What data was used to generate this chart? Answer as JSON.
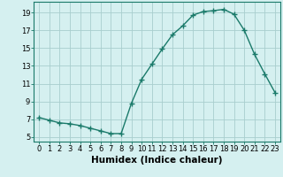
{
  "x": [
    0,
    1,
    2,
    3,
    4,
    5,
    6,
    7,
    8,
    9,
    10,
    11,
    12,
    13,
    14,
    15,
    16,
    17,
    18,
    19,
    20,
    21,
    22,
    23
  ],
  "y": [
    7.2,
    6.9,
    6.6,
    6.5,
    6.3,
    6.0,
    5.7,
    5.4,
    5.4,
    8.8,
    11.5,
    13.2,
    14.9,
    16.5,
    17.5,
    18.7,
    19.1,
    19.2,
    19.35,
    18.8,
    17.0,
    14.3,
    12.1,
    10.0
  ],
  "line_color": "#1a7a6a",
  "marker": "+",
  "marker_size": 4,
  "marker_lw": 1.0,
  "background_color": "#d5f0f0",
  "grid_color": "#a8cece",
  "xlabel": "Humidex (Indice chaleur)",
  "xlim": [
    -0.5,
    23.5
  ],
  "ylim": [
    4.5,
    20.2
  ],
  "xticks": [
    0,
    1,
    2,
    3,
    4,
    5,
    6,
    7,
    8,
    9,
    10,
    11,
    12,
    13,
    14,
    15,
    16,
    17,
    18,
    19,
    20,
    21,
    22,
    23
  ],
  "yticks": [
    5,
    7,
    9,
    11,
    13,
    15,
    17,
    19
  ],
  "fontsize_tick": 6,
  "fontsize_xlabel": 7.5,
  "linewidth": 1.0
}
